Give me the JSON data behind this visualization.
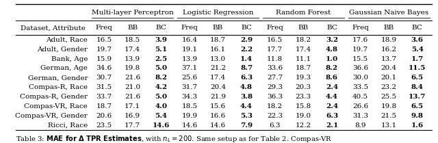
{
  "col_groups": [
    "Multi-layer Perceptron",
    "Logistic Regression",
    "Random Forest",
    "Gaussian Naive Bayes"
  ],
  "sub_cols": [
    "Freq",
    "BB",
    "BC"
  ],
  "row_header": "Dataset, Attribute",
  "rows": [
    "Adult, Race",
    "Adult, Gender",
    "Bank, Age",
    "German, Age",
    "German, Gender",
    "Compas-R, Race",
    "Compas-R, Gender",
    "Compas-VR, Race",
    "Compas-VR, Gender",
    "Ricci, Race"
  ],
  "data": [
    [
      [
        16.5,
        18.5,
        3.9
      ],
      [
        16.4,
        18.7,
        2.9
      ],
      [
        16.5,
        18.2,
        3.2
      ],
      [
        17.6,
        18.9,
        3.6
      ]
    ],
    [
      [
        19.7,
        17.4,
        5.1
      ],
      [
        19.1,
        16.1,
        2.2
      ],
      [
        17.7,
        17.4,
        4.8
      ],
      [
        19.7,
        16.2,
        5.4
      ]
    ],
    [
      [
        15.9,
        13.9,
        2.5
      ],
      [
        13.9,
        13.0,
        1.4
      ],
      [
        11.8,
        11.1,
        1.0
      ],
      [
        15.5,
        13.7,
        1.7
      ]
    ],
    [
      [
        34.6,
        19.8,
        5.0
      ],
      [
        37.1,
        21.2,
        8.7
      ],
      [
        33.6,
        18.7,
        8.2
      ],
      [
        36.6,
        20.4,
        11.5
      ]
    ],
    [
      [
        30.7,
        21.6,
        8.2
      ],
      [
        25.6,
        17.4,
        6.3
      ],
      [
        27.7,
        19.3,
        8.6
      ],
      [
        30.0,
        20.1,
        6.5
      ]
    ],
    [
      [
        31.5,
        21.0,
        4.2
      ],
      [
        31.7,
        20.4,
        4.8
      ],
      [
        29.3,
        20.3,
        2.4
      ],
      [
        33.5,
        23.2,
        8.4
      ]
    ],
    [
      [
        33.7,
        21.6,
        5.0
      ],
      [
        34.3,
        21.9,
        3.8
      ],
      [
        36.3,
        23.3,
        4.4
      ],
      [
        40.5,
        25.5,
        13.7
      ]
    ],
    [
      [
        18.7,
        17.1,
        4.0
      ],
      [
        18.5,
        15.6,
        4.4
      ],
      [
        18.2,
        15.8,
        2.4
      ],
      [
        26.6,
        19.8,
        6.5
      ]
    ],
    [
      [
        20.6,
        16.9,
        5.4
      ],
      [
        19.9,
        16.6,
        5.3
      ],
      [
        22.3,
        19.0,
        6.3
      ],
      [
        31.3,
        21.5,
        9.8
      ]
    ],
    [
      [
        23.5,
        17.7,
        14.6
      ],
      [
        14.6,
        14.6,
        7.9
      ],
      [
        6.3,
        12.2,
        2.1
      ],
      [
        8.9,
        13.1,
        1.6
      ]
    ]
  ],
  "bold_col_idx": 2,
  "bg_color": "#ffffff",
  "font_size": 7.5,
  "caption_fontsize": 7.2
}
